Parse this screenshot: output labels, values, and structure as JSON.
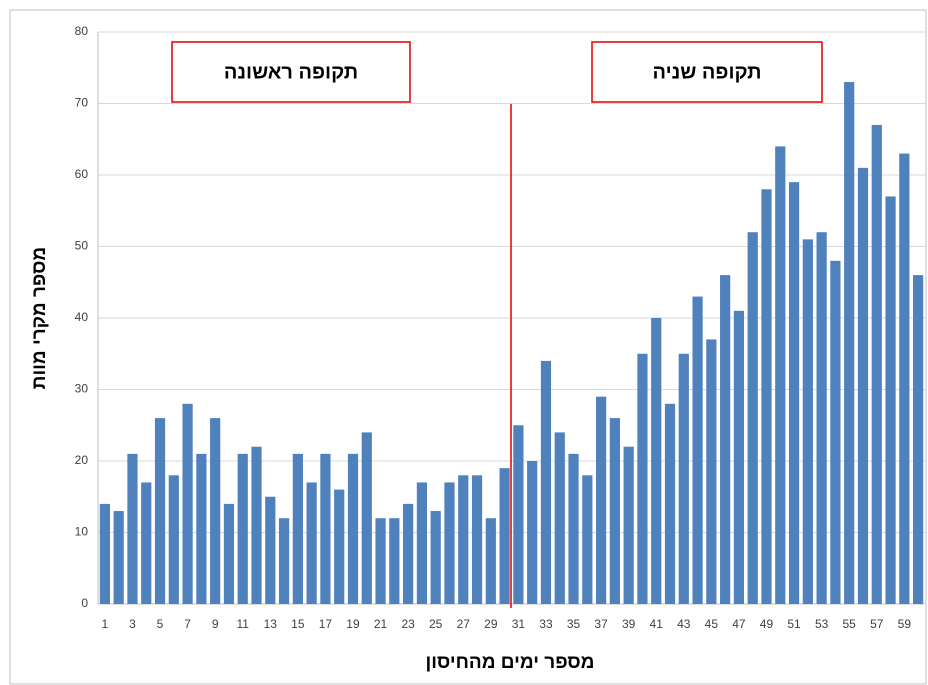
{
  "chart_data": {
    "type": "bar",
    "y_label": "מספר מקרי מוות",
    "x_label": "מספר ימים מהחיסון",
    "annotations": [
      "תקופה ראשונה",
      "תקופה שניה"
    ],
    "categories": [
      "1",
      null,
      "3",
      null,
      "5",
      null,
      "7",
      null,
      "9",
      null,
      "11",
      null,
      "13",
      null,
      "15",
      null,
      "17",
      null,
      "19",
      null,
      "21",
      null,
      "23",
      null,
      "25",
      null,
      "27",
      null,
      "29",
      null,
      "31",
      null,
      "33",
      null,
      "35",
      null,
      "37",
      null,
      "39",
      null,
      "41",
      null,
      "43",
      null,
      "45",
      null,
      "47",
      null,
      "49",
      null,
      "51",
      null,
      "53",
      null,
      "55",
      null,
      "57",
      null,
      "59",
      null
    ],
    "values": [
      14,
      13,
      21,
      17,
      26,
      18,
      28,
      21,
      26,
      14,
      21,
      22,
      15,
      12,
      21,
      17,
      21,
      16,
      21,
      24,
      12,
      12,
      14,
      17,
      13,
      17,
      18,
      18,
      12,
      19,
      25,
      20,
      34,
      24,
      21,
      18,
      29,
      26,
      22,
      35,
      40,
      28,
      35,
      43,
      37,
      46,
      41,
      52,
      58,
      64,
      59,
      51,
      52,
      48,
      73,
      61,
      67,
      57,
      63,
      46
    ],
    "color": "#4f81bd",
    "ylim": [
      0,
      80
    ],
    "yticks": [
      0,
      10,
      20,
      30,
      40,
      50,
      60,
      70,
      80
    ],
    "grid": true
  }
}
